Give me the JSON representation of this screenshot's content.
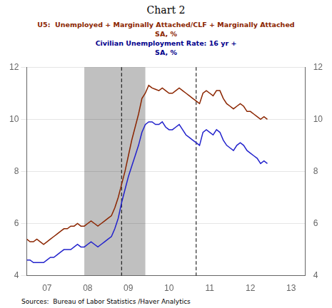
{
  "chart_data": {
    "type": "line",
    "title": "Chart 2",
    "annotations": [
      {
        "text": "U5:  Unemployed + Marginally Attached/CLF + Marginally Attached",
        "color": "#8B2500"
      },
      {
        "text": "SA, %",
        "color": "#8B2500"
      },
      {
        "text": "Civilian Unemployment Rate: 16 yr +",
        "color": "#00008B"
      },
      {
        "text": "SA, %",
        "color": "#00008B"
      }
    ],
    "source": "Sources:  Bureau of Labor Statistics /Haver Analytics",
    "x": [
      2006.5,
      2006.58333333,
      2006.66666666,
      2006.74999999,
      2006.83333332,
      2006.91666665,
      2006.99999998,
      2007.08333331,
      2007.16666664,
      2007.24999997,
      2007.3333333,
      2007.41666663,
      2007.49999996,
      2007.58333329,
      2007.66666662,
      2007.74999995,
      2007.83333328,
      2007.91666661,
      2007.99999994,
      2008.08333327,
      2008.1666666,
      2008.24999993,
      2008.33333326,
      2008.41666659,
      2008.49999992,
      2008.58333325,
      2008.66666658,
      2008.74999991,
      2008.83333324,
      2008.91666657,
      2008.9999999,
      2009.08333323,
      2009.16666656,
      2009.24999989,
      2009.33333322,
      2009.41666655,
      2009.49999988,
      2009.58333321,
      2009.66666654,
      2009.74999987,
      2009.8333332,
      2009.91666653,
      2009.99999986,
      2010.08333319,
      2010.16666652,
      2010.24999985,
      2010.33333318,
      2010.41666651,
      2010.49999984,
      2010.58333317,
      2010.6666665,
      2010.74999983,
      2010.83333316,
      2010.91666649,
      2010.99999982,
      2011.08333315,
      2011.16666648,
      2011.24999981,
      2011.33333314,
      2011.41666647,
      2011.4999998,
      2011.58333313,
      2011.66666646,
      2011.74999979,
      2011.83333312,
      2011.91666645,
      2011.99999978,
      2012.08333311,
      2012.16666644,
      2012.24999977,
      2012.3333331,
      2012.41666643
    ],
    "series": [
      {
        "color": "#8B2500",
        "values": [
          5.4,
          5.3,
          5.3,
          5.4,
          5.3,
          5.2,
          5.3,
          5.4,
          5.5,
          5.6,
          5.7,
          5.8,
          5.8,
          5.9,
          5.9,
          6.0,
          5.9,
          5.9,
          6.0,
          6.1,
          6.0,
          5.9,
          6.0,
          6.1,
          6.2,
          6.3,
          6.6,
          7.0,
          7.5,
          8.0,
          8.6,
          9.2,
          9.7,
          10.2,
          10.8,
          11.0,
          11.3,
          11.2,
          11.15,
          11.1,
          11.2,
          11.1,
          11.0,
          11.0,
          11.1,
          11.2,
          11.1,
          11.0,
          10.9,
          10.8,
          10.7,
          10.6,
          11.0,
          11.1,
          11.0,
          10.9,
          11.1,
          11.1,
          10.8,
          10.6,
          10.5,
          10.4,
          10.5,
          10.6,
          10.5,
          10.3,
          10.3,
          10.2,
          10.1,
          10.0,
          10.1,
          10.0
        ]
      },
      {
        "color": "#2222cc",
        "values": [
          4.6,
          4.6,
          4.5,
          4.5,
          4.5,
          4.5,
          4.6,
          4.7,
          4.7,
          4.8,
          4.9,
          5.0,
          5.0,
          5.0,
          5.1,
          5.2,
          5.1,
          5.1,
          5.2,
          5.3,
          5.2,
          5.1,
          5.2,
          5.3,
          5.4,
          5.5,
          5.8,
          6.2,
          6.8,
          7.3,
          7.8,
          8.2,
          8.6,
          9.0,
          9.5,
          9.8,
          9.9,
          9.9,
          9.8,
          9.8,
          9.9,
          9.7,
          9.6,
          9.6,
          9.7,
          9.8,
          9.6,
          9.4,
          9.3,
          9.2,
          9.1,
          9.0,
          9.5,
          9.6,
          9.5,
          9.4,
          9.6,
          9.5,
          9.2,
          9.0,
          8.9,
          8.8,
          9.0,
          9.1,
          9.0,
          8.8,
          8.7,
          8.6,
          8.5,
          8.3,
          8.4,
          8.3
        ]
      }
    ],
    "xlim": [
      2006.5,
      2013.35
    ],
    "xticks": [
      {
        "value": 2007.0,
        "label": "07"
      },
      {
        "value": 2008.0,
        "label": "08"
      },
      {
        "value": 2009.0,
        "label": "09"
      },
      {
        "value": 2010.0,
        "label": "10"
      },
      {
        "value": 2011.0,
        "label": "11"
      },
      {
        "value": 2012.0,
        "label": "12"
      },
      {
        "value": 2013.0,
        "label": "13"
      }
    ],
    "ylim": [
      4,
      12
    ],
    "yticks": [
      4,
      6,
      8,
      10,
      12
    ],
    "y2lim": [
      4,
      12
    ],
    "y2ticks": [
      4,
      6,
      8,
      10,
      12
    ],
    "grid": "y",
    "shaded_band": [
      2007.917,
      2009.417
    ],
    "vlines": [
      2008.833,
      2010.667
    ]
  }
}
